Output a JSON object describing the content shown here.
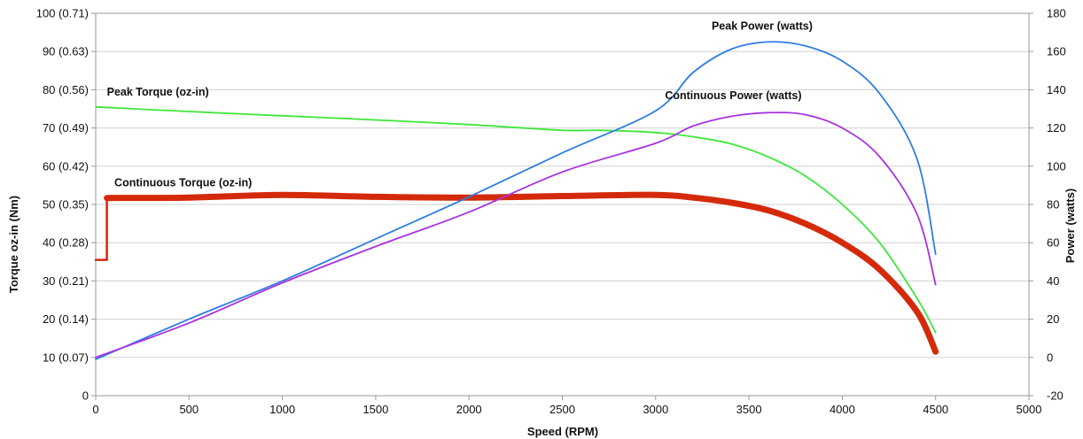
{
  "chart_data": {
    "type": "line",
    "xlabel": "Speed (RPM)",
    "ylabel_left": "Torque oz-in (Nm)",
    "ylabel_right": "Power (watts)",
    "xlim": [
      0,
      5000
    ],
    "ylim_left": [
      0,
      100
    ],
    "ylim_right": [
      -20,
      180
    ],
    "grid": true,
    "x_ticks": [
      "0",
      "500",
      "1000",
      "1500",
      "2000",
      "2500",
      "3000",
      "3500",
      "4000",
      "4500",
      "5000"
    ],
    "x_tick_values": [
      0,
      500,
      1000,
      1500,
      2000,
      2500,
      3000,
      3500,
      4000,
      4500,
      5000
    ],
    "y_left_ticks": [
      "0",
      "10 (0.07)",
      "20 (0.14)",
      "30 (0.21)",
      "40 (0.28)",
      "50 (0.35)",
      "60 (0.42)",
      "70 (0.49)",
      "80 (0.56)",
      "90 (0.63)",
      "100 (0.71)"
    ],
    "y_left_tick_values": [
      0,
      10,
      20,
      30,
      40,
      50,
      60,
      70,
      80,
      90,
      100
    ],
    "y_right_ticks": [
      "-20",
      "0",
      "20",
      "40",
      "60",
      "80",
      "100",
      "120",
      "140",
      "160",
      "180"
    ],
    "y_right_tick_values": [
      -20,
      0,
      20,
      40,
      60,
      80,
      100,
      120,
      140,
      160,
      180
    ],
    "series": [
      {
        "name": "Peak Torque (oz-in)",
        "axis": "left",
        "color": "#3ee83a",
        "width": 1.8,
        "x": [
          0,
          500,
          1000,
          1500,
          2000,
          2500,
          2700,
          3000,
          3200,
          3400,
          3600,
          3800,
          4000,
          4200,
          4400,
          4500
        ],
        "y": [
          75.5,
          74.3,
          73.2,
          72.1,
          70.9,
          69.4,
          69.4,
          68.8,
          67.7,
          65.9,
          62.5,
          57.5,
          50.0,
          40.0,
          25.5,
          16.5
        ]
      },
      {
        "name": "Continuous Torque (oz-in)",
        "axis": "left",
        "color": "#d42a0a",
        "width": 2.5,
        "x": [
          0,
          60,
          60
        ],
        "y": [
          35.5,
          35.5,
          52
        ]
      },
      {
        "name": "Continuous Torque (oz-in)",
        "axis": "left",
        "color": "#d42a0a",
        "width": 7,
        "x": [
          60,
          500,
          1000,
          1500,
          2000,
          2500,
          3000,
          3200,
          3400,
          3600,
          3800,
          4000,
          4200,
          4400,
          4500
        ],
        "y": [
          51.7,
          51.8,
          52.5,
          52.0,
          51.8,
          52.2,
          52.5,
          51.8,
          50.5,
          48.5,
          45.0,
          40.0,
          33.0,
          22.0,
          11.5
        ]
      },
      {
        "name": "Peak Power (watts)",
        "axis": "right",
        "color": "#2f7de0",
        "width": 1.8,
        "x": [
          0,
          500,
          1000,
          1500,
          2000,
          2500,
          3000,
          3200,
          3400,
          3600,
          3800,
          4000,
          4200,
          4400,
          4500
        ],
        "y": [
          -1,
          20,
          40,
          62,
          84,
          107,
          129,
          149,
          161,
          165,
          163,
          155,
          138,
          104,
          54
        ]
      },
      {
        "name": "Continuous Power (watts)",
        "axis": "right",
        "color": "#a832e0",
        "width": 1.8,
        "x": [
          0,
          500,
          1000,
          1500,
          2000,
          2500,
          3000,
          3200,
          3400,
          3600,
          3800,
          4000,
          4200,
          4400,
          4500
        ],
        "y": [
          0,
          18,
          39,
          58,
          76,
          97,
          112,
          121,
          126,
          128,
          127,
          120,
          105,
          75,
          38
        ]
      }
    ],
    "annotations": [
      {
        "text": "Peak Torque (oz-in)",
        "x": 60,
        "y_left": 78.5
      },
      {
        "text": "Continuous Torque (oz-in)",
        "x": 100,
        "y_left": 54.8
      },
      {
        "text": "Peak Power (watts)",
        "x": 3300,
        "y_left": 95.7
      },
      {
        "text": "Continuous Power (watts)",
        "x": 3050,
        "y_left": 77.6
      }
    ]
  }
}
